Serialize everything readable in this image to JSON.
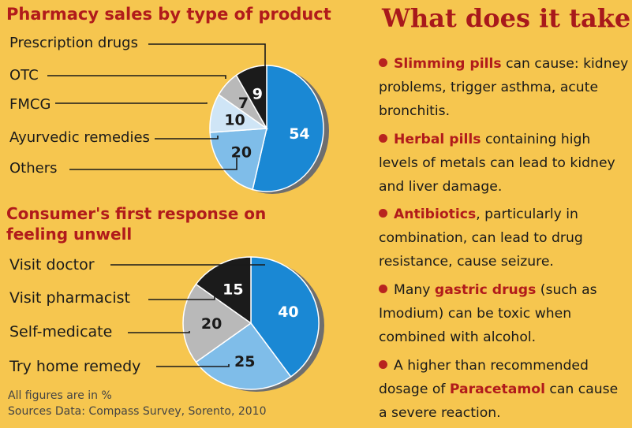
{
  "chart_data": [
    {
      "type": "pie",
      "title": "Pharmacy sales by type of product",
      "categories": [
        "Prescription drugs",
        "OTC",
        "FMCG",
        "Ayurvedic remedies",
        "Others"
      ],
      "values": [
        54,
        20,
        10,
        7,
        9
      ],
      "value_labels": [
        "54",
        "20",
        "10",
        "7",
        "9"
      ],
      "colors": [
        "#1a88d4",
        "#7fbde9",
        "#cfe5f6",
        "#b9b9b9",
        "#1b1b1b"
      ]
    },
    {
      "type": "pie",
      "title": "Consumer's first response on feeling unwell",
      "categories": [
        "Visit doctor",
        "Visit pharmacist",
        "Self-medicate",
        "Try home remedy"
      ],
      "values": [
        40,
        25,
        20,
        15
      ],
      "value_labels": [
        "40",
        "25",
        "20",
        "15"
      ],
      "colors": [
        "#1a88d4",
        "#7fbde9",
        "#b9b9b9",
        "#1b1b1b"
      ]
    }
  ],
  "footnote": {
    "line1": "All figures are in %",
    "line2": "Sources Data: Compass Survey, Sorento, 2010"
  },
  "info": {
    "heading": "What does it take...",
    "items": [
      {
        "highlight": "Slimming pills",
        "text_after": " can cause: kidney problems, trigger asthma, acute bronchitis.",
        "text_before": ""
      },
      {
        "highlight": "Herbal pills",
        "text_after": " containing high levels of metals can lead to kidney and liver damage.",
        "text_before": ""
      },
      {
        "highlight": "Antibiotics",
        "text_after": ", particularly in combination, can lead to drug resistance, cause seizure.",
        "text_before": ""
      },
      {
        "text_before": "Many ",
        "highlight": "gastric drugs",
        "text_after": " (such as Imodium) can be toxic when combined with alcohol."
      },
      {
        "text_before": "A higher than recommended dosage of ",
        "highlight": "Paracetamol",
        "text_after": " can cause a severe reaction."
      }
    ]
  }
}
